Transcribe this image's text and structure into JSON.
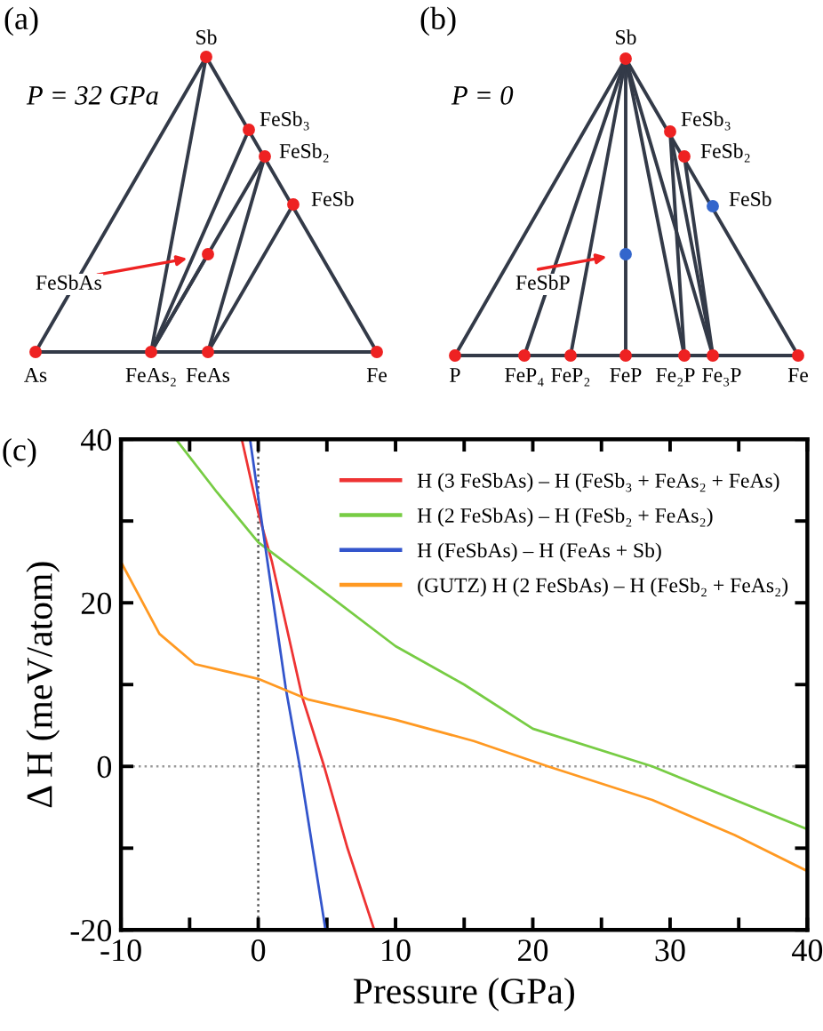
{
  "chart_data": [
    {
      "type": "other",
      "title": "(a)",
      "annotations": [
        "P = 32 GPa",
        "Sb",
        "FeSb₃",
        "FeSb₂",
        "FeSb",
        "FeSbAs",
        "As",
        "FeAs₂",
        "FeAs",
        "Fe"
      ]
    },
    {
      "type": "other",
      "title": "(b)",
      "annotations": [
        "P = 0",
        "Sb",
        "FeSb₃",
        "FeSb₂",
        "FeSb",
        "FeSbP",
        "P",
        "FeP₄",
        "FeP₂",
        "FeP",
        "Fe₂P",
        "Fe₃P",
        "Fe"
      ]
    },
    {
      "type": "line",
      "title": "(c)",
      "xlabel": "Pressure (GPa)",
      "ylabel": "Δ H (meV/atom)",
      "xlim": [
        -10,
        40
      ],
      "ylim": [
        -20,
        40
      ],
      "xticks": [
        -10,
        {
          "value": -5,
          "label": null
        },
        0,
        {
          "value": 5,
          "label": null
        },
        10,
        {
          "value": 15,
          "label": null
        },
        20,
        {
          "value": 25,
          "label": null
        },
        30,
        {
          "value": 35,
          "label": null
        },
        40
      ],
      "yticks": [
        -20,
        {
          "value": -10,
          "label": null
        },
        0,
        {
          "value": 10,
          "label": null
        },
        20,
        {
          "value": 30,
          "label": null
        },
        40
      ],
      "grid": false,
      "legend": "top right",
      "marker": "none",
      "line_style": "solid",
      "ref_lines": [
        {
          "axis": "x",
          "value": 0,
          "color": "#555555",
          "line_style": "dotted"
        },
        {
          "axis": "y",
          "value": 0,
          "color": "#999999",
          "line_style": "dotted"
        }
      ],
      "series": [
        {
          "name": "H (3 FeSbAs) – H (FeSb₃ + FeAs₂ + FeAs)",
          "color": "#ee3333",
          "x": [
            -1.2,
            0,
            1,
            2,
            3.2,
            4.8,
            6.5,
            8.45
          ],
          "values": [
            40,
            31,
            25,
            17.5,
            8.5,
            0,
            -10,
            -20
          ]
        },
        {
          "name": "H (2 FeSbAs) – H (FeSb₂ + FeAs₂)",
          "color": "#77cc44",
          "x": [
            -6,
            -3,
            0,
            4.9,
            10,
            15,
            20,
            28.7,
            40
          ],
          "values": [
            40,
            33.5,
            27.4,
            21.2,
            14.7,
            10,
            4.6,
            0,
            -7.7
          ]
        },
        {
          "name": "H (FeSbAs) – H (FeAs + Sb)",
          "color": "#3355cc",
          "x": [
            -0.6,
            0.5,
            2,
            3,
            4.9
          ],
          "values": [
            40,
            27,
            9.6,
            0.2,
            -20
          ]
        },
        {
          "name": "(GUTZ) H (2 FeSbAs) – H (FeSb₂ + FeAs₂)",
          "color": "#ff9922",
          "x": [
            -10,
            -7.2,
            -4.6,
            0,
            3.6,
            10,
            15.7,
            21.1,
            28.7,
            34.7,
            40
          ],
          "values": [
            25,
            16.2,
            12.5,
            10.7,
            8.2,
            5.7,
            3.1,
            0,
            -4.1,
            -8.4,
            -12.8
          ]
        }
      ]
    }
  ]
}
